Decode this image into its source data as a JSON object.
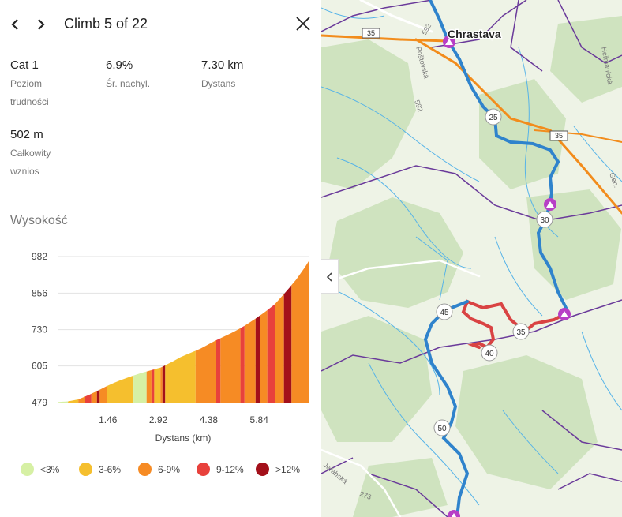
{
  "header": {
    "title": "Climb 5 of 22"
  },
  "stats": [
    {
      "value": "Cat 1",
      "label": "Poziom trudności"
    },
    {
      "value": "6.9%",
      "label": "Śr. nachyl."
    },
    {
      "value": "7.30 km",
      "label": "Dystans"
    },
    {
      "value": "502 m",
      "label": "Całkowity wznios"
    }
  ],
  "elevation": {
    "title": "Wysokość"
  },
  "chart_data": {
    "type": "area",
    "xlabel": "Dystans (km)",
    "ylabel": "",
    "yticks": [
      982,
      856,
      730,
      605,
      479
    ],
    "xticks": [
      1.46,
      2.92,
      4.38,
      5.84
    ],
    "ylim": [
      479,
      982
    ],
    "xlim": [
      0,
      7.3
    ],
    "grid": true,
    "profile": {
      "x": [
        0,
        0.3,
        0.6,
        0.9,
        1.2,
        1.5,
        1.8,
        2.1,
        2.4,
        2.7,
        3.0,
        3.3,
        3.6,
        3.9,
        4.2,
        4.5,
        4.8,
        5.1,
        5.4,
        5.7,
        6.0,
        6.3,
        6.6,
        6.9,
        7.2,
        7.3
      ],
      "y": [
        481,
        483,
        490,
        505,
        522,
        540,
        555,
        568,
        580,
        590,
        600,
        618,
        638,
        652,
        668,
        688,
        705,
        722,
        742,
        765,
        790,
        818,
        858,
        900,
        950,
        970
      ]
    },
    "segments": [
      {
        "from": 0.0,
        "to": 0.3,
        "cat": "<3%"
      },
      {
        "from": 0.3,
        "to": 0.6,
        "cat": "3-6%"
      },
      {
        "from": 0.6,
        "to": 0.8,
        "cat": "6-9%"
      },
      {
        "from": 0.8,
        "to": 0.98,
        "cat": "9-12%"
      },
      {
        "from": 0.98,
        "to": 1.14,
        "cat": "6-9%"
      },
      {
        "from": 1.14,
        "to": 1.22,
        "cat": ">12%"
      },
      {
        "from": 1.22,
        "to": 1.42,
        "cat": "6-9%"
      },
      {
        "from": 1.42,
        "to": 2.2,
        "cat": "3-6%"
      },
      {
        "from": 2.2,
        "to": 2.58,
        "cat": "<3%"
      },
      {
        "from": 2.58,
        "to": 2.72,
        "cat": "6-9%"
      },
      {
        "from": 2.72,
        "to": 2.8,
        "cat": "9-12%"
      },
      {
        "from": 2.8,
        "to": 2.98,
        "cat": "3-6%"
      },
      {
        "from": 2.98,
        "to": 3.04,
        "cat": "6-9%"
      },
      {
        "from": 3.04,
        "to": 3.12,
        "cat": ">12%"
      },
      {
        "from": 3.12,
        "to": 4.0,
        "cat": "3-6%"
      },
      {
        "from": 4.0,
        "to": 4.6,
        "cat": "6-9%"
      },
      {
        "from": 4.6,
        "to": 4.72,
        "cat": "9-12%"
      },
      {
        "from": 4.72,
        "to": 5.3,
        "cat": "6-9%"
      },
      {
        "from": 5.3,
        "to": 5.42,
        "cat": "9-12%"
      },
      {
        "from": 5.42,
        "to": 5.74,
        "cat": "6-9%"
      },
      {
        "from": 5.74,
        "to": 5.86,
        "cat": ">12%"
      },
      {
        "from": 5.86,
        "to": 6.08,
        "cat": "6-9%"
      },
      {
        "from": 6.08,
        "to": 6.3,
        "cat": "9-12%"
      },
      {
        "from": 6.3,
        "to": 6.56,
        "cat": "6-9%"
      },
      {
        "from": 6.56,
        "to": 6.78,
        "cat": ">12%"
      },
      {
        "from": 6.78,
        "to": 7.3,
        "cat": "6-9%"
      }
    ]
  },
  "legend": [
    {
      "label": "<3%",
      "color": "#d6f0a4"
    },
    {
      "label": "3-6%",
      "color": "#f5bf2e"
    },
    {
      "label": "6-9%",
      "color": "#f68b24"
    },
    {
      "label": "9-12%",
      "color": "#e8413c"
    },
    {
      "label": ">12%",
      "color": "#a3101a"
    }
  ],
  "map": {
    "town": "Chrastava",
    "road_labels": [
      "35",
      "35",
      "592",
      "592",
      "Heřmanická",
      "Poštovská",
      "Jeřábská",
      "273",
      "Gen."
    ],
    "distance_markers": [
      "25",
      "30",
      "35",
      "40",
      "45",
      "50"
    ]
  }
}
